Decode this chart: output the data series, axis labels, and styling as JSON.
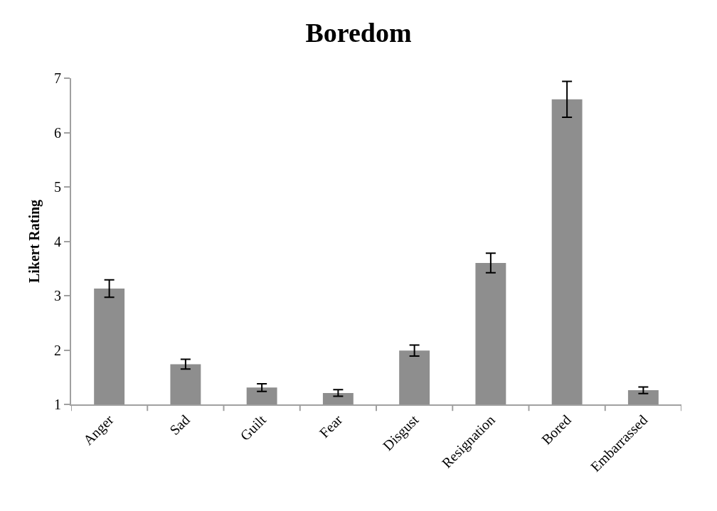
{
  "chart_data": {
    "type": "bar",
    "title": "Boredom",
    "ylabel": "Likert Rating",
    "categories": [
      "Anger",
      "Sad",
      "Guilt",
      "Fear",
      "Disgust",
      "Resignation",
      "Bored",
      "Embarrassed"
    ],
    "values": [
      3.13,
      1.74,
      1.31,
      1.21,
      1.99,
      3.6,
      6.61,
      1.26
    ],
    "errors": [
      0.16,
      0.09,
      0.07,
      0.06,
      0.1,
      0.18,
      0.33,
      0.06
    ],
    "color": "#8e8e8e",
    "ylim": [
      1,
      7
    ],
    "yticks": [
      1,
      2,
      3,
      4,
      5,
      6,
      7
    ]
  }
}
